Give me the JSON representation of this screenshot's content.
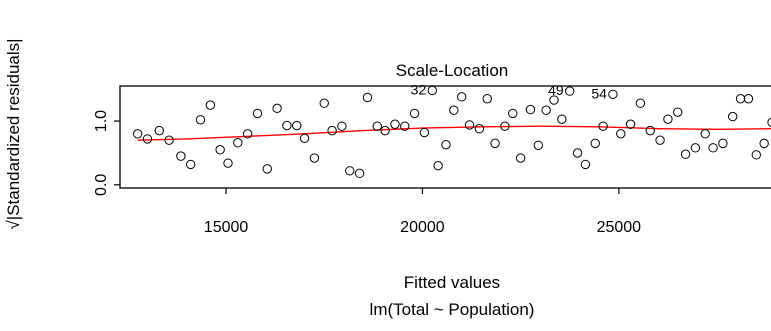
{
  "chart_data": {
    "type": "scatter",
    "title": "Scale-Location",
    "subtitle": "lm(Total ~ Population)",
    "xlabel": "Fitted values",
    "ylabel": "√|Standardized residuals|",
    "xlim": [
      12300,
      28900
    ],
    "ylim": [
      -0.05,
      1.55
    ],
    "x_ticks": [
      15000,
      20000,
      25000
    ],
    "y_ticks": [
      0.0,
      1.0
    ],
    "y_tick_labels": [
      "0.0",
      "1.0"
    ],
    "grid": false,
    "series": [
      {
        "points": [
          [
            12750,
            0.8
          ],
          [
            13000,
            0.72
          ],
          [
            13300,
            0.85
          ],
          [
            13550,
            0.7
          ],
          [
            13850,
            0.45
          ],
          [
            14100,
            0.32
          ],
          [
            14350,
            1.02
          ],
          [
            14600,
            1.25
          ],
          [
            14850,
            0.55
          ],
          [
            15050,
            0.34
          ],
          [
            15300,
            0.66
          ],
          [
            15550,
            0.8
          ],
          [
            15800,
            1.12
          ],
          [
            16050,
            0.25
          ],
          [
            16300,
            1.2
          ],
          [
            16550,
            0.93
          ],
          [
            16800,
            0.93
          ],
          [
            17000,
            0.73
          ],
          [
            17250,
            0.42
          ],
          [
            17500,
            1.28
          ],
          [
            17700,
            0.85
          ],
          [
            17950,
            0.92
          ],
          [
            18150,
            0.22
          ],
          [
            18400,
            0.18
          ],
          [
            18600,
            1.37
          ],
          [
            18850,
            0.92
          ],
          [
            19050,
            0.85
          ],
          [
            19300,
            0.95
          ],
          [
            19550,
            0.92
          ],
          [
            19800,
            1.12
          ],
          [
            20050,
            0.82
          ],
          [
            20250,
            1.48
          ],
          [
            20400,
            0.3
          ],
          [
            20600,
            0.63
          ],
          [
            20800,
            1.17
          ],
          [
            21000,
            1.38
          ],
          [
            21200,
            0.94
          ],
          [
            21450,
            0.88
          ],
          [
            21650,
            1.35
          ],
          [
            21850,
            0.65
          ],
          [
            22100,
            0.92
          ],
          [
            22300,
            1.12
          ],
          [
            22500,
            0.42
          ],
          [
            22750,
            1.18
          ],
          [
            22950,
            0.62
          ],
          [
            23150,
            1.17
          ],
          [
            23350,
            1.33
          ],
          [
            23550,
            1.03
          ],
          [
            23750,
            1.47
          ],
          [
            23950,
            0.5
          ],
          [
            24150,
            0.32
          ],
          [
            24400,
            0.65
          ],
          [
            24600,
            0.92
          ],
          [
            24850,
            1.42
          ],
          [
            25050,
            0.8
          ],
          [
            25300,
            0.95
          ],
          [
            25550,
            1.28
          ],
          [
            25800,
            0.85
          ],
          [
            26050,
            0.7
          ],
          [
            26250,
            1.03
          ],
          [
            26500,
            1.14
          ],
          [
            26700,
            0.48
          ],
          [
            26950,
            0.58
          ],
          [
            27200,
            0.8
          ],
          [
            27400,
            0.58
          ],
          [
            27650,
            0.65
          ],
          [
            27900,
            1.07
          ],
          [
            28100,
            1.35
          ],
          [
            28300,
            1.35
          ],
          [
            28500,
            0.47
          ],
          [
            28700,
            0.65
          ],
          [
            28900,
            0.98
          ]
        ]
      }
    ],
    "smooth_line": {
      "color": "#ff0000",
      "x": [
        12750,
        14000,
        15500,
        17000,
        18500,
        20000,
        21500,
        23000,
        24500,
        26000,
        27500,
        28900
      ],
      "y": [
        0.7,
        0.72,
        0.76,
        0.8,
        0.85,
        0.89,
        0.91,
        0.92,
        0.91,
        0.88,
        0.87,
        0.88
      ]
    },
    "point_labels": [
      {
        "text": "32",
        "x": 20250,
        "y": 1.48
      },
      {
        "text": "49",
        "x": 23750,
        "y": 1.47
      },
      {
        "text": "54",
        "x": 24850,
        "y": 1.42
      }
    ]
  }
}
